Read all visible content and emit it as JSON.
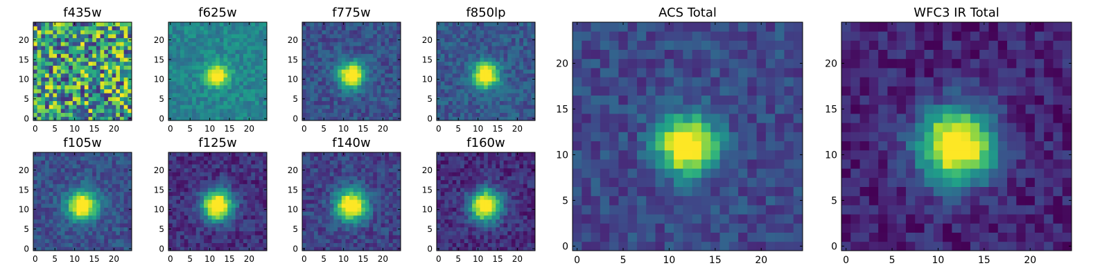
{
  "chart_data": [
    {
      "type": "heatmap",
      "title": "f435w",
      "profile": "noise",
      "xticks": [
        0,
        5,
        10,
        15,
        20
      ],
      "yticks": [
        0,
        5,
        10,
        15,
        20
      ],
      "xlim": [
        -0.5,
        24.5
      ],
      "ylim": [
        -0.5,
        24.5
      ],
      "grid": false,
      "legend": "none"
    },
    {
      "type": "heatmap",
      "title": "f625w",
      "profile": "source",
      "peak_xy": [
        12,
        11
      ],
      "sigma": 2.0,
      "background": 0.45,
      "xticks": [
        0,
        5,
        10,
        15,
        20
      ],
      "yticks": [
        0,
        5,
        10,
        15,
        20
      ],
      "xlim": [
        -0.5,
        24.5
      ],
      "ylim": [
        -0.5,
        24.5
      ],
      "grid": false,
      "legend": "none"
    },
    {
      "type": "heatmap",
      "title": "f775w",
      "profile": "source",
      "peak_xy": [
        12,
        11
      ],
      "sigma": 2.3,
      "background": 0.25,
      "xticks": [
        0,
        5,
        10,
        15,
        20
      ],
      "yticks": [
        0,
        5,
        10,
        15,
        20
      ],
      "xlim": [
        -0.5,
        24.5
      ],
      "ylim": [
        -0.5,
        24.5
      ],
      "grid": false,
      "legend": "none"
    },
    {
      "type": "heatmap",
      "title": "f850lp",
      "profile": "source",
      "peak_xy": [
        12,
        11
      ],
      "sigma": 2.3,
      "background": 0.28,
      "xticks": [
        0,
        5,
        10,
        15,
        20
      ],
      "yticks": [
        0,
        5,
        10,
        15,
        20
      ],
      "xlim": [
        -0.5,
        24.5
      ],
      "ylim": [
        -0.5,
        24.5
      ],
      "grid": false,
      "legend": "none"
    },
    {
      "type": "heatmap",
      "title": "f105w",
      "profile": "source",
      "peak_xy": [
        12,
        11
      ],
      "sigma": 2.6,
      "background": 0.25,
      "xticks": [
        0,
        5,
        10,
        15,
        20
      ],
      "yticks": [
        0,
        5,
        10,
        15,
        20
      ],
      "xlim": [
        -0.5,
        24.5
      ],
      "ylim": [
        -0.5,
        24.5
      ],
      "grid": false,
      "legend": "none"
    },
    {
      "type": "heatmap",
      "title": "f125w",
      "profile": "source",
      "peak_xy": [
        12,
        11
      ],
      "sigma": 2.7,
      "background": 0.14,
      "xticks": [
        0,
        5,
        10,
        15,
        20
      ],
      "yticks": [
        0,
        5,
        10,
        15,
        20
      ],
      "xlim": [
        -0.5,
        24.5
      ],
      "ylim": [
        -0.5,
        24.5
      ],
      "grid": false,
      "legend": "none"
    },
    {
      "type": "heatmap",
      "title": "f140w",
      "profile": "source",
      "peak_xy": [
        12,
        11
      ],
      "sigma": 2.7,
      "background": 0.2,
      "xticks": [
        0,
        5,
        10,
        15,
        20
      ],
      "yticks": [
        0,
        5,
        10,
        15,
        20
      ],
      "xlim": [
        -0.5,
        24.5
      ],
      "ylim": [
        -0.5,
        24.5
      ],
      "grid": false,
      "legend": "none"
    },
    {
      "type": "heatmap",
      "title": "f160w",
      "profile": "source",
      "peak_xy": [
        12,
        11
      ],
      "sigma": 2.7,
      "background": 0.13,
      "xticks": [
        0,
        5,
        10,
        15,
        20
      ],
      "yticks": [
        0,
        5,
        10,
        15,
        20
      ],
      "xlim": [
        -0.5,
        24.5
      ],
      "ylim": [
        -0.5,
        24.5
      ],
      "grid": false,
      "legend": "none"
    },
    {
      "type": "heatmap",
      "title": "ACS Total",
      "profile": "source",
      "peak_xy": [
        12,
        11
      ],
      "sigma": 2.2,
      "background": 0.22,
      "xticks": [
        0,
        5,
        10,
        15,
        20
      ],
      "yticks": [
        0,
        5,
        10,
        15,
        20
      ],
      "xlim": [
        -0.5,
        24.5
      ],
      "ylim": [
        -0.5,
        24.5
      ],
      "grid": false,
      "legend": "none"
    },
    {
      "type": "heatmap",
      "title": "WFC3 IR Total",
      "profile": "source",
      "peak_xy": [
        12,
        11
      ],
      "sigma": 2.8,
      "background": 0.1,
      "xticks": [
        0,
        5,
        10,
        15,
        20
      ],
      "yticks": [
        0,
        5,
        10,
        15,
        20
      ],
      "xlim": [
        -0.5,
        24.5
      ],
      "ylim": [
        -0.5,
        24.5
      ],
      "grid": false,
      "legend": "none"
    }
  ],
  "colors": {
    "colormap": "viridis",
    "viridis": [
      "#440154",
      "#482878",
      "#3e4989",
      "#31688e",
      "#26828e",
      "#1f9e89",
      "#35b779",
      "#6ece58",
      "#b5de2b",
      "#fde725"
    ],
    "frame": "#000000",
    "background": "#ffffff"
  }
}
